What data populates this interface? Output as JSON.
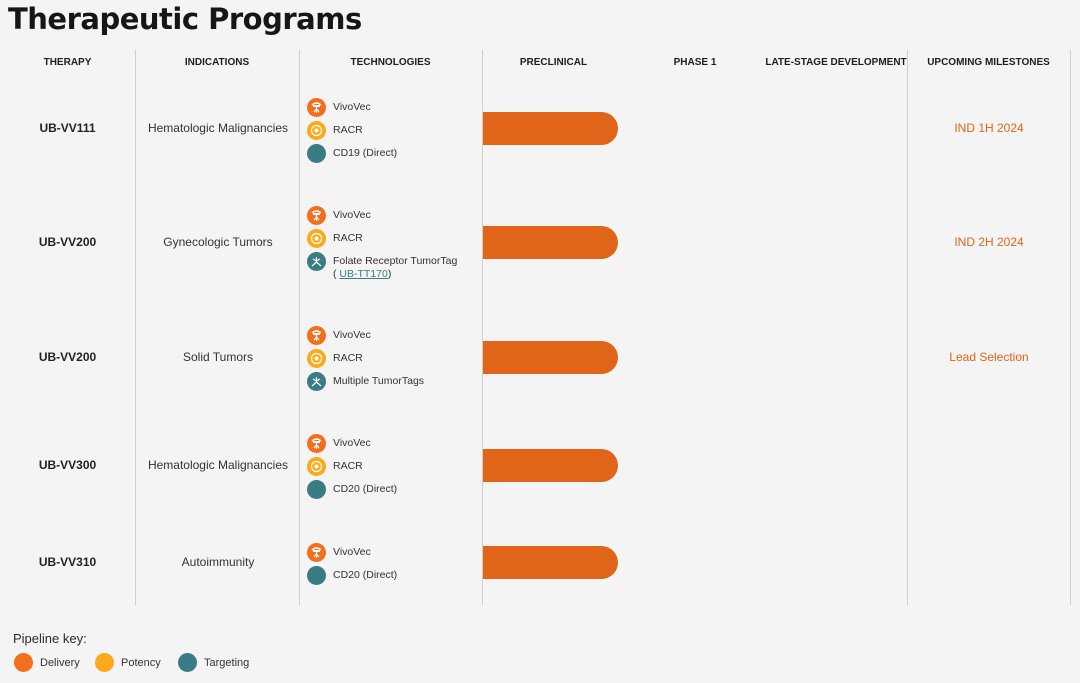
{
  "page": {
    "title": "Therapeutic Programs"
  },
  "colors": {
    "delivery": "#f36f1e",
    "potency": "#fbaa1c",
    "targeting": "#3a7c84",
    "bar": "#e06518"
  },
  "headers": {
    "therapy": "THERAPY",
    "indications": "INDICATIONS",
    "technologies": "TECHNOLOGIES",
    "preclinical": "PRECLINICAL",
    "phase1": "PHASE 1",
    "late_stage": "LATE-STAGE DEVELOPMENT",
    "milestones": "UPCOMING MILESTONES"
  },
  "rows": [
    {
      "therapy": "UB-VV111",
      "indication": "Hematologic Malignancies",
      "technologies": [
        {
          "label": "VivoVec",
          "type": "delivery",
          "icon": "vivovec-icon"
        },
        {
          "label": "RACR",
          "type": "potency",
          "icon": "racr-icon"
        },
        {
          "label": "CD19 (Direct)",
          "type": "targeting",
          "icon": "direct-targeting-icon"
        }
      ],
      "milestone": "IND 1H 2024"
    },
    {
      "therapy": "UB-VV200",
      "indication": "Gynecologic Tumors",
      "technologies": [
        {
          "label": "VivoVec",
          "type": "delivery",
          "icon": "vivovec-icon"
        },
        {
          "label": "RACR",
          "type": "potency",
          "icon": "racr-icon"
        },
        {
          "label": "Folate Receptor TumorTag",
          "sub_prefix": "( ",
          "sub_link": "UB-TT170",
          "sub_suffix": ")",
          "type": "targeting",
          "icon": "tumortag-icon"
        }
      ],
      "milestone": "IND 2H 2024"
    },
    {
      "therapy": "UB-VV200",
      "indication": "Solid Tumors",
      "technologies": [
        {
          "label": "VivoVec",
          "type": "delivery",
          "icon": "vivovec-icon"
        },
        {
          "label": "RACR",
          "type": "potency",
          "icon": "racr-icon"
        },
        {
          "label": "Multiple TumorTags",
          "type": "targeting",
          "icon": "tumortag-icon"
        }
      ],
      "milestone": "Lead Selection"
    },
    {
      "therapy": "UB-VV300",
      "indication": "Hematologic Malignancies",
      "technologies": [
        {
          "label": "VivoVec",
          "type": "delivery",
          "icon": "vivovec-icon"
        },
        {
          "label": "RACR",
          "type": "potency",
          "icon": "racr-icon"
        },
        {
          "label": "CD20 (Direct)",
          "type": "targeting",
          "icon": "direct-targeting-icon"
        }
      ],
      "milestone": ""
    },
    {
      "therapy": "UB-VV310",
      "indication": "Autoimmunity",
      "technologies": [
        {
          "label": "VivoVec",
          "type": "delivery",
          "icon": "vivovec-icon"
        },
        {
          "label": "CD20 (Direct)",
          "type": "targeting",
          "icon": "direct-targeting-icon"
        }
      ],
      "milestone": ""
    }
  ],
  "key": {
    "title": "Pipeline key:",
    "items": [
      {
        "label": "Delivery",
        "type": "delivery"
      },
      {
        "label": "Potency",
        "type": "potency"
      },
      {
        "label": "Targeting",
        "type": "targeting"
      }
    ]
  }
}
